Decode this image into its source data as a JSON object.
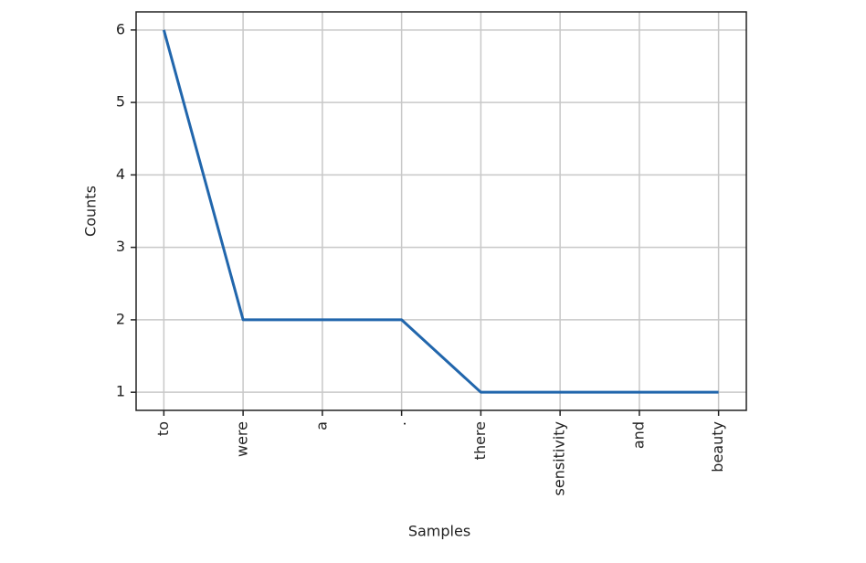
{
  "chart_data": {
    "type": "line",
    "xlabel": "Samples",
    "ylabel": "Counts",
    "categories": [
      "to",
      "were",
      "a",
      ".",
      "there",
      "sensitivity",
      "and",
      "beauty"
    ],
    "values": [
      6,
      2,
      2,
      2,
      1,
      1,
      1,
      1
    ],
    "color": "#2166ac",
    "ylim": [
      0.75,
      6.25
    ],
    "yticks": [
      1,
      2,
      3,
      4,
      5,
      6
    ],
    "grid": true
  }
}
